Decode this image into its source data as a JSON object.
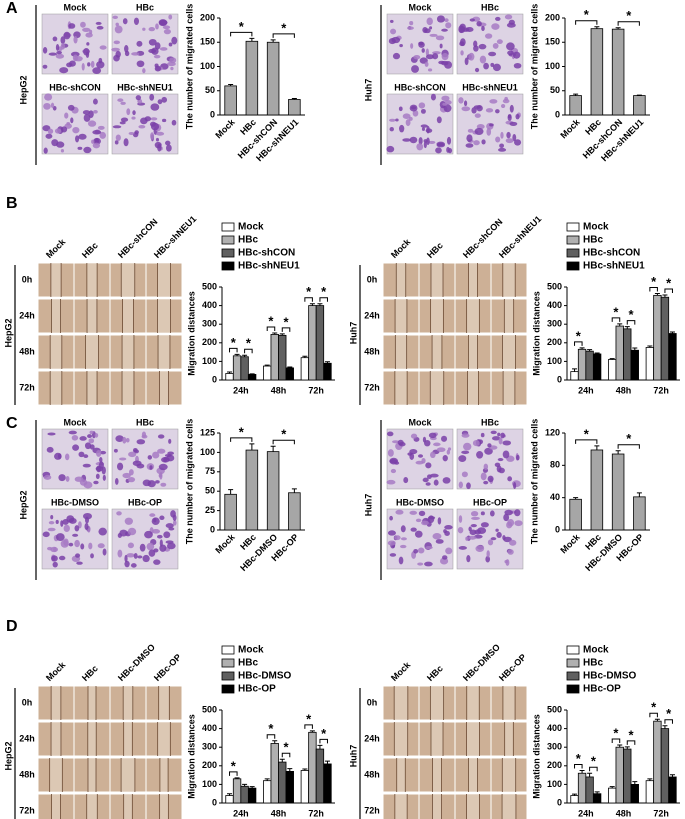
{
  "panels": [
    {
      "letter": "A",
      "left": {
        "cell_line": "HepG2",
        "image_labels": [
          "Mock",
          "HBc",
          "HBc-shCON",
          "HBc-shNEU1"
        ]
      },
      "right": {
        "cell_line": "Huh7",
        "image_labels": [
          "Mock",
          "HBc",
          "HBc-shCON",
          "HBc-shNEU1"
        ]
      }
    },
    {
      "letter": "B",
      "left": {
        "cell_line": "HepG2",
        "column_labels": [
          "Mock",
          "HBc",
          "HBc-shCON",
          "HBc-shNEU1"
        ],
        "row_labels": [
          "0h",
          "24h",
          "48h",
          "72h"
        ]
      },
      "right": {
        "cell_line": "Huh7",
        "column_labels": [
          "Mock",
          "HBc",
          "HBc-shCON",
          "HBc-shNEU1"
        ],
        "row_labels": [
          "0h",
          "24h",
          "48h",
          "72h"
        ]
      }
    },
    {
      "letter": "C",
      "left": {
        "cell_line": "HepG2",
        "image_labels": [
          "Mock",
          "HBc",
          "HBc-DMSO",
          "HBc-OP"
        ]
      },
      "right": {
        "cell_line": "Huh7",
        "image_labels": [
          "Mock",
          "HBc",
          "HBc-DMSO",
          "HBc-OP"
        ]
      }
    },
    {
      "letter": "D",
      "left": {
        "cell_line": "HepG2",
        "column_labels": [
          "Mock",
          "HBc",
          "HBc-DMSO",
          "HBc-OP"
        ],
        "row_labels": [
          "0h",
          "24h",
          "48h",
          "72h"
        ]
      },
      "right": {
        "cell_line": "Huh7",
        "column_labels": [
          "Mock",
          "HBc",
          "HBc-DMSO",
          "HBc-OP"
        ],
        "row_labels": [
          "0h",
          "24h",
          "48h",
          "72h"
        ]
      }
    }
  ],
  "chart_data": [
    {
      "type": "bar",
      "ylabel": "The number of migrated cells",
      "color": "#a6a6a6",
      "categories": [
        "Mock",
        "HBc",
        "HBc-shCON",
        "HBc-shNEU1"
      ],
      "values": [
        60,
        152,
        150,
        32
      ],
      "errors": [
        3,
        6,
        5,
        2
      ],
      "ylim": [
        0,
        200
      ],
      "yticks": [
        0,
        50,
        100,
        150,
        200
      ],
      "annotations": [
        {
          "text": "*",
          "pair": [
            "Mock",
            "HBc"
          ]
        },
        {
          "text": "*",
          "pair": [
            "HBc-shCON",
            "HBc-shNEU1"
          ]
        }
      ]
    },
    {
      "type": "bar",
      "ylabel": "The number of migrated cells",
      "color": "#a6a6a6",
      "categories": [
        "Mock",
        "HBc",
        "HBc-shCON",
        "HBc-shNEU1"
      ],
      "values": [
        40,
        178,
        177,
        40
      ],
      "errors": [
        3,
        4,
        3,
        1
      ],
      "ylim": [
        0,
        200
      ],
      "yticks": [
        0,
        50,
        100,
        150,
        200
      ],
      "annotations": [
        {
          "text": "*",
          "pair": [
            "Mock",
            "HBc"
          ]
        },
        {
          "text": "*",
          "pair": [
            "HBc-shCON",
            "HBc-shNEU1"
          ]
        }
      ]
    },
    {
      "type": "bar",
      "ylabel": "Migration distances",
      "categories": [
        "24h",
        "48h",
        "72h"
      ],
      "series": [
        {
          "name": "Mock",
          "color": "#ffffff",
          "values": [
            35,
            75,
            120
          ],
          "errors": [
            8,
            5,
            8
          ]
        },
        {
          "name": "HBc",
          "color": "#b0b0b0",
          "values": [
            130,
            245,
            400
          ],
          "errors": [
            8,
            8,
            10
          ]
        },
        {
          "name": "HBc-shCON",
          "color": "#606060",
          "values": [
            125,
            240,
            400
          ],
          "errors": [
            8,
            8,
            10
          ]
        },
        {
          "name": "HBc-shNEU1",
          "color": "#000000",
          "values": [
            30,
            65,
            90
          ],
          "errors": [
            3,
            5,
            8
          ]
        }
      ],
      "ylim": [
        0,
        500
      ],
      "yticks": [
        0,
        100,
        200,
        300,
        400,
        500
      ],
      "annotations": [
        {
          "text": "*",
          "category": "24h",
          "pair": [
            "Mock",
            "HBc"
          ]
        },
        {
          "text": "*",
          "category": "24h",
          "pair": [
            "HBc-shCON",
            "HBc-shNEU1"
          ]
        },
        {
          "text": "*",
          "category": "48h",
          "pair": [
            "Mock",
            "HBc"
          ]
        },
        {
          "text": "*",
          "category": "48h",
          "pair": [
            "HBc-shCON",
            "HBc-shNEU1"
          ]
        },
        {
          "text": "*",
          "category": "72h",
          "pair": [
            "Mock",
            "HBc"
          ]
        },
        {
          "text": "*",
          "category": "72h",
          "pair": [
            "HBc-shCON",
            "HBc-shNEU1"
          ]
        }
      ]
    },
    {
      "type": "bar",
      "ylabel": "Migration distances",
      "categories": [
        "24h",
        "48h",
        "72h"
      ],
      "series": [
        {
          "name": "Mock",
          "color": "#ffffff",
          "values": [
            45,
            110,
            175
          ],
          "errors": [
            15,
            5,
            8
          ]
        },
        {
          "name": "HBc",
          "color": "#b0b0b0",
          "values": [
            165,
            290,
            455
          ],
          "errors": [
            8,
            12,
            10
          ]
        },
        {
          "name": "HBc-shCON",
          "color": "#606060",
          "values": [
            155,
            275,
            445
          ],
          "errors": [
            8,
            12,
            12
          ]
        },
        {
          "name": "HBc-shNEU1",
          "color": "#000000",
          "values": [
            140,
            160,
            250
          ],
          "errors": [
            5,
            12,
            8
          ]
        }
      ],
      "ylim": [
        0,
        500
      ],
      "yticks": [
        0,
        100,
        200,
        300,
        400,
        500
      ],
      "annotations": [
        {
          "text": "*",
          "category": "24h",
          "pair": [
            "Mock",
            "HBc"
          ]
        },
        {
          "text": "*",
          "category": "48h",
          "pair": [
            "Mock",
            "HBc"
          ]
        },
        {
          "text": "*",
          "category": "48h",
          "pair": [
            "HBc-shCON",
            "HBc-shNEU1"
          ]
        },
        {
          "text": "*",
          "category": "72h",
          "pair": [
            "Mock",
            "HBc"
          ]
        },
        {
          "text": "*",
          "category": "72h",
          "pair": [
            "HBc-shCON",
            "HBc-shNEU1"
          ]
        }
      ]
    },
    {
      "type": "bar",
      "ylabel": "The number of migrated cells",
      "color": "#a6a6a6",
      "categories": [
        "Mock",
        "HBc",
        "HBc-DMSO",
        "HBc-OP"
      ],
      "values": [
        46,
        103,
        101,
        48
      ],
      "errors": [
        6,
        8,
        7,
        5
      ],
      "ylim": [
        0,
        125
      ],
      "yticks": [
        0,
        25,
        50,
        75,
        100,
        125
      ],
      "annotations": [
        {
          "text": "*",
          "pair": [
            "Mock",
            "HBc"
          ]
        },
        {
          "text": "*",
          "pair": [
            "HBc-DMSO",
            "HBc-OP"
          ]
        }
      ]
    },
    {
      "type": "bar",
      "ylabel": "The number of migrated cells",
      "color": "#a6a6a6",
      "categories": [
        "Mock",
        "HBc",
        "HBc-DMSO",
        "HBc-OP"
      ],
      "values": [
        38,
        99,
        94,
        41
      ],
      "errors": [
        2,
        5,
        4,
        5
      ],
      "ylim": [
        0,
        120
      ],
      "yticks": [
        0,
        40,
        80,
        120
      ],
      "annotations": [
        {
          "text": "*",
          "pair": [
            "Mock",
            "HBc"
          ]
        },
        {
          "text": "*",
          "pair": [
            "HBc-DMSO",
            "HBc-OP"
          ]
        }
      ]
    },
    {
      "type": "bar",
      "ylabel": "Migration distances",
      "categories": [
        "24h",
        "48h",
        "72h"
      ],
      "series": [
        {
          "name": "Mock",
          "color": "#ffffff",
          "values": [
            40,
            120,
            175
          ],
          "errors": [
            10,
            10,
            8
          ]
        },
        {
          "name": "HBc",
          "color": "#b0b0b0",
          "values": [
            130,
            320,
            380
          ],
          "errors": [
            5,
            15,
            8
          ]
        },
        {
          "name": "HBc-DMSO",
          "color": "#606060",
          "values": [
            90,
            220,
            290
          ],
          "errors": [
            10,
            15,
            20
          ]
        },
        {
          "name": "HBc-OP",
          "color": "#000000",
          "values": [
            80,
            170,
            210
          ],
          "errors": [
            8,
            15,
            15
          ]
        }
      ],
      "ylim": [
        0,
        500
      ],
      "yticks": [
        0,
        100,
        200,
        300,
        400,
        500
      ],
      "annotations": [
        {
          "text": "*",
          "category": "24h",
          "pair": [
            "Mock",
            "HBc"
          ]
        },
        {
          "text": "*",
          "category": "48h",
          "pair": [
            "Mock",
            "HBc"
          ]
        },
        {
          "text": "*",
          "category": "48h",
          "pair": [
            "HBc-DMSO",
            "HBc-OP"
          ]
        },
        {
          "text": "*",
          "category": "72h",
          "pair": [
            "Mock",
            "HBc"
          ]
        },
        {
          "text": "*",
          "category": "72h",
          "pair": [
            "HBc-DMSO",
            "HBc-OP"
          ]
        }
      ]
    },
    {
      "type": "bar",
      "ylabel": "Migration distances",
      "categories": [
        "24h",
        "48h",
        "72h"
      ],
      "series": [
        {
          "name": "Mock",
          "color": "#ffffff",
          "values": [
            40,
            80,
            120
          ],
          "errors": [
            8,
            8,
            10
          ]
        },
        {
          "name": "HBc",
          "color": "#b0b0b0",
          "values": [
            160,
            300,
            440
          ],
          "errors": [
            15,
            12,
            10
          ]
        },
        {
          "name": "HBc-DMSO",
          "color": "#606060",
          "values": [
            140,
            290,
            400
          ],
          "errors": [
            20,
            12,
            15
          ]
        },
        {
          "name": "HBc-OP",
          "color": "#000000",
          "values": [
            50,
            100,
            140
          ],
          "errors": [
            10,
            15,
            12
          ]
        }
      ],
      "ylim": [
        0,
        500
      ],
      "yticks": [
        0,
        100,
        200,
        300,
        400,
        500
      ],
      "annotations": [
        {
          "text": "*",
          "category": "24h",
          "pair": [
            "Mock",
            "HBc"
          ]
        },
        {
          "text": "*",
          "category": "24h",
          "pair": [
            "HBc-DMSO",
            "HBc-OP"
          ]
        },
        {
          "text": "*",
          "category": "48h",
          "pair": [
            "Mock",
            "HBc"
          ]
        },
        {
          "text": "*",
          "category": "48h",
          "pair": [
            "HBc-DMSO",
            "HBc-OP"
          ]
        },
        {
          "text": "*",
          "category": "72h",
          "pair": [
            "Mock",
            "HBc"
          ]
        },
        {
          "text": "*",
          "category": "72h",
          "pair": [
            "HBc-DMSO",
            "HBc-OP"
          ]
        }
      ]
    }
  ]
}
